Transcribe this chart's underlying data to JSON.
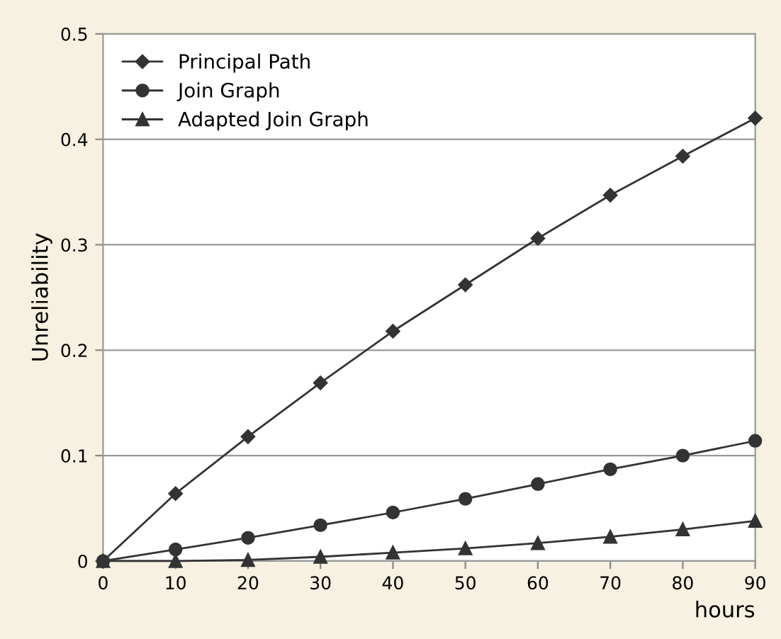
{
  "chart_data": {
    "type": "line",
    "xlabel": "hours",
    "ylabel": "Unreliability",
    "x": [
      0,
      10,
      20,
      30,
      40,
      50,
      60,
      70,
      80,
      90
    ],
    "series": [
      {
        "name": "Principal Path",
        "color": "#333333",
        "marker": "diamond",
        "values": [
          0,
          0.064,
          0.118,
          0.169,
          0.218,
          0.262,
          0.306,
          0.347,
          0.384,
          0.42
        ]
      },
      {
        "name": "Join Graph",
        "color": "#333333",
        "marker": "circle",
        "values": [
          0,
          0.011,
          0.022,
          0.034,
          0.046,
          0.059,
          0.073,
          0.087,
          0.1,
          0.114
        ]
      },
      {
        "name": "Adapted Join Graph",
        "color": "#333333",
        "marker": "triangle",
        "values": [
          0,
          0,
          0.001,
          0.004,
          0.008,
          0.012,
          0.017,
          0.023,
          0.03,
          0.038
        ]
      }
    ],
    "xlim": [
      0,
      90
    ],
    "xticks": [
      0,
      10,
      20,
      30,
      40,
      50,
      60,
      70,
      80,
      90
    ],
    "ylim": [
      0,
      0.5
    ],
    "yticks": [
      0,
      0.1,
      0.2,
      0.3,
      0.4,
      0.5
    ],
    "grid": "y",
    "legend": "top left",
    "line_style": "solid"
  }
}
